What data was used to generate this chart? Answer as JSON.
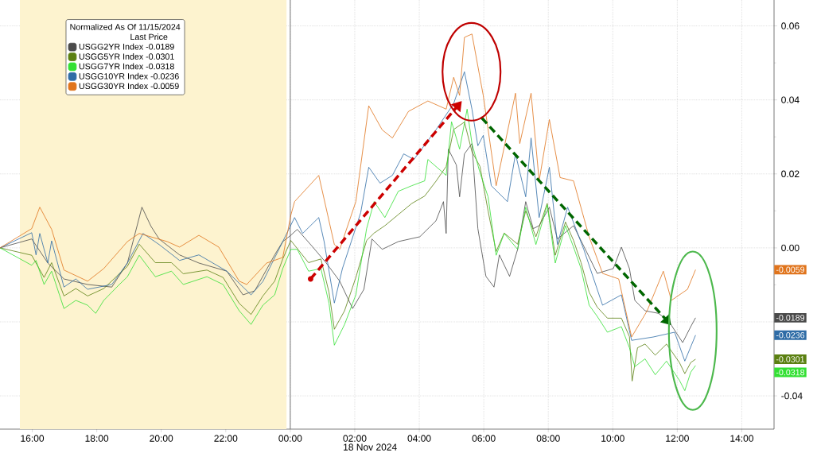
{
  "chart_data": {
    "type": "line",
    "xlabel": "18 Nov 2024",
    "legend_title": "Normalized As Of 11/15/2024",
    "legend": "top left",
    "grid": true,
    "xlim": [
      "2024-11-17T15:00",
      "2024-11-18T15:00"
    ],
    "xticks": [
      {
        "value": "2024-11-17T16:00",
        "label": "16:00"
      },
      {
        "value": "2024-11-17T18:00",
        "label": "18:00"
      },
      {
        "value": "2024-11-17T20:00",
        "label": "20:00"
      },
      {
        "value": "2024-11-17T22:00",
        "label": "22:00"
      },
      {
        "value": "2024-11-18T00:00",
        "label": "00:00"
      },
      {
        "value": "2024-11-18T02:00",
        "label": "02:00"
      },
      {
        "value": "2024-11-18T04:00",
        "label": "04:00"
      },
      {
        "value": "2024-11-18T06:00",
        "label": "06:00"
      },
      {
        "value": "2024-11-18T08:00",
        "label": "08:00"
      },
      {
        "value": "2024-11-18T10:00",
        "label": "10:00"
      },
      {
        "value": "2024-11-18T12:00",
        "label": "12:00"
      },
      {
        "value": "2024-11-18T14:00",
        "label": "14:00"
      }
    ],
    "ylim": [
      -0.049,
      0.067
    ],
    "yticks": [
      -0.04,
      {
        "value": -0.02,
        "label": null
      },
      {
        "value": 0,
        "label": "0.00"
      },
      0.02,
      0.04,
      0.06
    ],
    "bands": [
      {
        "axis": "x",
        "from": "2024-11-17T15:37",
        "to": "2024-11-17T23:53",
        "color": "#fdf3cf"
      }
    ],
    "ref_lines": [
      {
        "axis": "x",
        "value": "2024-11-18T00:00",
        "color": "#808080"
      }
    ],
    "series": [
      {
        "name": "USGG2YR Index   -0.0189",
        "color": "#4a4a4a",
        "x": [
          "2024-11-17T15:00",
          "2024-11-17T15:59",
          "2024-11-17T16:29",
          "2024-11-17T16:59",
          "2024-11-17T17:43",
          "2024-11-17T18:28",
          "2024-11-17T18:57",
          "2024-11-17T19:24",
          "2024-11-17T19:41",
          "2024-11-17T19:56",
          "2024-11-17T20:34",
          "2024-11-17T21:10",
          "2024-11-17T22:02",
          "2024-11-17T22:32",
          "2024-11-17T22:54",
          "2024-11-17T23:31",
          "2024-11-17T23:46",
          "2024-11-18T00:01",
          "2024-11-18T00:13",
          "2024-11-18T00:42",
          "2024-11-18T01:07",
          "2024-11-18T01:32",
          "2024-11-18T01:56",
          "2024-11-18T02:17",
          "2024-11-18T02:32",
          "2024-11-18T02:51",
          "2024-11-18T03:21",
          "2024-11-18T04:01",
          "2024-11-18T04:31",
          "2024-11-18T04:45",
          "2024-11-18T04:50",
          "2024-11-18T04:54",
          "2024-11-18T05:09",
          "2024-11-18T05:15",
          "2024-11-18T05:24",
          "2024-11-18T05:38",
          "2024-11-18T05:49",
          "2024-11-18T06:04",
          "2024-11-18T06:19",
          "2024-11-18T06:29",
          "2024-11-18T06:48",
          "2024-11-18T07:03",
          "2024-11-18T07:18",
          "2024-11-18T07:32",
          "2024-11-18T07:43",
          "2024-11-18T08:02",
          "2024-11-18T08:17",
          "2024-11-18T08:47",
          "2024-11-18T09:12",
          "2024-11-18T09:31",
          "2024-11-18T10:01",
          "2024-11-18T10:16",
          "2024-11-18T10:31",
          "2024-11-18T10:41",
          "2024-11-18T11:00",
          "2024-11-18T11:25",
          "2024-11-18T11:44",
          "2024-11-18T12:10",
          "2024-11-18T12:25",
          "2024-11-18T12:34"
        ],
        "values": [
          0,
          0.0024,
          -0.0041,
          -0.0084,
          -0.0099,
          -0.0106,
          -0.0041,
          0.011,
          0.0058,
          0.0024,
          -0.0019,
          -0.0041,
          -0.0063,
          -0.0127,
          -0.0116,
          -0.0019,
          0.0017,
          0.0034,
          0.005,
          0.0002,
          -0.0041,
          -0.009,
          -0.0164,
          -0.0112,
          0.0024,
          -0.0004,
          0.0017,
          0.003,
          0.0073,
          0.0125,
          0.0039,
          0.0267,
          0.0224,
          0.0138,
          0.0254,
          0.0282,
          0.0052,
          -0.0077,
          -0.0106,
          -0.0019,
          -0.0077,
          -0.0004,
          0.0125,
          0.0052,
          0.006,
          0.011,
          0.0024,
          0.006,
          -0.0013,
          -0.0069,
          -0.0056,
          0.0002,
          -0.0056,
          -0.0142,
          -0.017,
          -0.0177,
          -0.0198,
          -0.0256,
          -0.0213,
          -0.0189
        ]
      },
      {
        "name": "USGG5YR Index   -0.0301",
        "color": "#5b8011",
        "x": [
          "2024-11-17T15:00",
          "2024-11-17T15:59",
          "2024-11-17T16:22",
          "2024-11-17T16:36",
          "2024-11-17T16:59",
          "2024-11-17T17:21",
          "2024-11-17T17:43",
          "2024-11-17T18:13",
          "2024-11-17T18:42",
          "2024-11-17T18:57",
          "2024-11-17T19:19",
          "2024-11-17T19:49",
          "2024-11-17T20:19",
          "2024-11-17T20:41",
          "2024-11-17T21:25",
          "2024-11-17T21:55",
          "2024-11-17T22:25",
          "2024-11-17T22:47",
          "2024-11-17T23:09",
          "2024-11-17T23:31",
          "2024-11-17T23:46",
          "2024-11-18T00:01",
          "2024-11-18T00:34",
          "2024-11-18T00:57",
          "2024-11-18T01:12",
          "2024-11-18T01:22",
          "2024-11-18T01:41",
          "2024-11-18T02:02",
          "2024-11-18T02:22",
          "2024-11-18T02:36",
          "2024-11-18T02:56",
          "2024-11-18T03:21",
          "2024-11-18T03:46",
          "2024-11-18T04:10",
          "2024-11-18T04:31",
          "2024-11-18T04:50",
          "2024-11-18T05:04",
          "2024-11-18T05:24",
          "2024-11-18T05:38",
          "2024-11-18T05:53",
          "2024-11-18T06:08",
          "2024-11-18T06:23",
          "2024-11-18T06:38",
          "2024-11-18T07:03",
          "2024-11-18T07:18",
          "2024-11-18T07:37",
          "2024-11-18T07:58",
          "2024-11-18T08:13",
          "2024-11-18T08:32",
          "2024-11-18T08:47",
          "2024-11-18T09:01",
          "2024-11-18T09:16",
          "2024-11-18T09:31",
          "2024-11-18T09:50",
          "2024-11-18T10:16",
          "2024-11-18T10:31",
          "2024-11-18T10:36",
          "2024-11-18T10:46",
          "2024-11-18T11:00",
          "2024-11-18T11:19",
          "2024-11-18T11:40",
          "2024-11-18T12:04",
          "2024-11-18T12:14",
          "2024-11-18T12:25",
          "2024-11-18T12:34"
        ],
        "values": [
          0,
          -0.002,
          -0.008,
          -0.004,
          -0.013,
          -0.011,
          -0.013,
          -0.011,
          -0.007,
          -0.005,
          0.001,
          -0.004,
          -0.004,
          -0.007,
          -0.006,
          -0.008,
          -0.015,
          -0.018,
          -0.013,
          -0.009,
          -0.003,
          0.002,
          -0.004,
          -0.003,
          -0.012,
          -0.022,
          -0.017,
          -0.008,
          0.002,
          0.004,
          0.006,
          0.009,
          0.012,
          0.014,
          0.018,
          0.022,
          0.032,
          0.034,
          0.026,
          0.022,
          0.01,
          -0.001,
          0.004,
          0.001,
          0.01,
          0.003,
          0.012,
          -0.002,
          0.007,
          0.002,
          -0.004,
          -0.012,
          -0.016,
          -0.019,
          -0.019,
          -0.024,
          -0.036,
          -0.027,
          -0.026,
          -0.029,
          -0.026,
          -0.031,
          -0.034,
          -0.031,
          -0.0301
        ]
      },
      {
        "name": "USGG7YR Index   -0.0318",
        "color": "#33e033",
        "x": [
          "2024-11-17T15:00",
          "2024-11-17T15:59",
          "2024-11-17T16:07",
          "2024-11-17T16:22",
          "2024-11-17T16:36",
          "2024-11-17T16:59",
          "2024-11-17T17:21",
          "2024-11-17T17:43",
          "2024-11-17T17:58",
          "2024-11-17T18:13",
          "2024-11-17T18:42",
          "2024-11-17T18:57",
          "2024-11-17T19:19",
          "2024-11-17T19:49",
          "2024-11-17T20:19",
          "2024-11-17T20:41",
          "2024-11-17T21:25",
          "2024-11-17T21:55",
          "2024-11-17T22:25",
          "2024-11-17T22:47",
          "2024-11-17T23:09",
          "2024-11-17T23:31",
          "2024-11-17T23:46",
          "2024-11-18T00:01",
          "2024-11-18T00:13",
          "2024-11-18T00:34",
          "2024-11-18T00:57",
          "2024-11-18T01:12",
          "2024-11-18T01:22",
          "2024-11-18T01:41",
          "2024-11-18T02:02",
          "2024-11-18T02:22",
          "2024-11-18T02:36",
          "2024-11-18T02:56",
          "2024-11-18T03:21",
          "2024-11-18T03:46",
          "2024-11-18T04:10",
          "2024-11-18T04:16",
          "2024-11-18T04:50",
          "2024-11-18T05:00",
          "2024-11-18T05:15",
          "2024-11-18T05:29",
          "2024-11-18T05:38",
          "2024-11-18T05:53",
          "2024-11-18T06:08",
          "2024-11-18T06:23",
          "2024-11-18T06:38",
          "2024-11-18T07:03",
          "2024-11-18T07:18",
          "2024-11-18T07:37",
          "2024-11-18T07:58",
          "2024-11-18T08:13",
          "2024-11-18T08:32",
          "2024-11-18T08:47",
          "2024-11-18T09:01",
          "2024-11-18T09:16",
          "2024-11-18T09:31",
          "2024-11-18T09:50",
          "2024-11-18T10:16",
          "2024-11-18T10:31",
          "2024-11-18T10:41",
          "2024-11-18T11:00",
          "2024-11-18T11:19",
          "2024-11-18T11:40",
          "2024-11-18T12:04",
          "2024-11-18T12:14",
          "2024-11-18T12:25",
          "2024-11-18T12:34"
        ],
        "values": [
          0,
          -0.0047,
          -0.0034,
          -0.0099,
          -0.0063,
          -0.0164,
          -0.0142,
          -0.0155,
          -0.0177,
          -0.0142,
          -0.0099,
          -0.0078,
          -0.002,
          -0.0078,
          -0.0063,
          -0.0099,
          -0.0078,
          -0.0099,
          -0.017,
          -0.0207,
          -0.0155,
          -0.0127,
          -0.0056,
          -0.0004,
          -0.0004,
          -0.0063,
          -0.0056,
          -0.0149,
          -0.0263,
          -0.0207,
          -0.0127,
          0.0052,
          0.0125,
          0.0082,
          0.0153,
          0.0168,
          0.0181,
          0.0239,
          0.0196,
          0.0341,
          0.0267,
          0.0375,
          0.0282,
          0.0203,
          0.0138,
          -0.002,
          0.0039,
          -0.0004,
          0.011,
          0.0009,
          0.0116,
          -0.0041,
          0.006,
          0.0002,
          -0.0056,
          -0.0155,
          -0.0185,
          -0.0228,
          -0.0213,
          -0.027,
          -0.0321,
          -0.03,
          -0.0343,
          -0.0306,
          -0.0358,
          -0.0386,
          -0.0336,
          -0.0318
        ]
      },
      {
        "name": "USGG10YR Index -0.0236",
        "color": "#2f6ca6",
        "x": [
          "2024-11-17T15:00",
          "2024-11-17T15:59",
          "2024-11-17T16:07",
          "2024-11-17T16:14",
          "2024-11-17T16:29",
          "2024-11-17T16:36",
          "2024-11-17T16:59",
          "2024-11-17T17:21",
          "2024-11-17T17:43",
          "2024-11-17T18:28",
          "2024-11-17T18:57",
          "2024-11-17T19:26",
          "2024-11-17T19:56",
          "2024-11-17T20:34",
          "2024-11-17T21:10",
          "2024-11-17T22:02",
          "2024-11-17T22:47",
          "2024-11-17T23:09",
          "2024-11-17T23:46",
          "2024-11-18T00:08",
          "2024-11-18T00:23",
          "2024-11-18T00:53",
          "2024-11-18T01:03",
          "2024-11-18T01:22",
          "2024-11-18T01:37",
          "2024-11-18T02:11",
          "2024-11-18T02:26",
          "2024-11-18T02:47",
          "2024-11-18T03:10",
          "2024-11-18T03:31",
          "2024-11-18T03:50",
          "2024-11-18T04:31",
          "2024-11-18T05:04",
          "2024-11-18T05:24",
          "2024-11-18T05:38",
          "2024-11-18T05:49",
          "2024-11-18T05:59",
          "2024-11-18T06:14",
          "2024-11-18T06:44",
          "2024-11-18T06:59",
          "2024-11-18T07:18",
          "2024-11-18T07:28",
          "2024-11-18T07:43",
          "2024-11-18T08:02",
          "2024-11-18T08:17",
          "2024-11-18T08:36",
          "2024-11-18T09:06",
          "2024-11-18T09:41",
          "2024-11-18T10:16",
          "2024-11-18T10:35",
          "2024-11-18T11:15",
          "2024-11-18T11:55",
          "2024-11-18T12:14",
          "2024-11-18T12:34"
        ],
        "values": [
          0,
          0.0041,
          -0.0019,
          0.0039,
          -0.0041,
          0.0019,
          -0.0106,
          -0.0084,
          -0.0112,
          -0.0099,
          -0.0041,
          0.0039,
          0.0009,
          -0.0034,
          -0.0019,
          -0.0063,
          -0.0127,
          -0.0091,
          0.0017,
          0.0082,
          0.0039,
          0.0082,
          0.0017,
          -0.0149,
          -0.0056,
          0.0095,
          0.0218,
          0.0175,
          0.0196,
          0.0254,
          0.0239,
          0.0319,
          0.039,
          0.0476,
          0.0375,
          0.0276,
          0.0304,
          0.0168,
          0.0125,
          0.0254,
          0.0138,
          0.0297,
          0.0082,
          0.0218,
          0.0009,
          0.011,
          -0.0004,
          -0.0155,
          -0.0127,
          -0.025,
          -0.0241,
          -0.0228,
          -0.0306,
          -0.0236
        ]
      },
      {
        "name": "USGG30YR Index -0.0059",
        "color": "#e0741c",
        "x": [
          "2024-11-17T15:00",
          "2024-11-17T15:59",
          "2024-11-17T16:14",
          "2024-11-17T16:36",
          "2024-11-17T16:59",
          "2024-11-17T17:43",
          "2024-11-17T18:13",
          "2024-11-17T18:57",
          "2024-11-17T19:19",
          "2024-11-17T20:11",
          "2024-11-17T20:34",
          "2024-11-17T21:10",
          "2024-11-17T21:47",
          "2024-11-17T22:25",
          "2024-11-17T22:39",
          "2024-11-17T23:16",
          "2024-11-17T23:46",
          "2024-11-18T00:01",
          "2024-11-18T00:08",
          "2024-11-18T00:53",
          "2024-11-18T01:22",
          "2024-11-18T01:32",
          "2024-11-18T02:02",
          "2024-11-18T02:26",
          "2024-11-18T02:51",
          "2024-11-18T03:10",
          "2024-11-18T03:40",
          "2024-11-18T04:16",
          "2024-11-18T04:50",
          "2024-11-18T05:04",
          "2024-11-18T05:15",
          "2024-11-18T05:24",
          "2024-11-18T05:38",
          "2024-11-18T05:59",
          "2024-11-18T06:23",
          "2024-11-18T06:59",
          "2024-11-18T07:07",
          "2024-11-18T07:28",
          "2024-11-18T07:43",
          "2024-11-18T08:02",
          "2024-11-18T08:22",
          "2024-11-18T08:47",
          "2024-11-18T09:16",
          "2024-11-18T09:41",
          "2024-11-18T10:11",
          "2024-11-18T10:35",
          "2024-11-18T11:04",
          "2024-11-18T11:34",
          "2024-11-18T11:49",
          "2024-11-18T12:19",
          "2024-11-18T12:34"
        ],
        "values": [
          0,
          0.0052,
          0.011,
          0.005,
          -0.006,
          -0.009,
          -0.0056,
          0.0017,
          0.0039,
          0.0017,
          0.0002,
          0.0034,
          0.0002,
          -0.009,
          -0.0099,
          -0.0041,
          -0.0026,
          0.0088,
          0.0125,
          0.0196,
          0.0009,
          -0.0004,
          0.0125,
          0.0384,
          0.0319,
          0.0297,
          0.0369,
          0.0397,
          0.0375,
          0.0461,
          0.0412,
          0.0569,
          0.0578,
          0.0412,
          0.0168,
          0.0418,
          0.0282,
          0.0418,
          0.0181,
          0.0347,
          0.019,
          0.0181,
          0.003,
          -0.0069,
          -0.0084,
          -0.0241,
          -0.017,
          -0.0063,
          -0.0142,
          -0.0112,
          -0.0059
        ]
      }
    ],
    "annotations": [
      "Last Price",
      "-0.0189",
      "-0.0301",
      "-0.0318",
      "-0.0236",
      "-0.0059"
    ]
  }
}
